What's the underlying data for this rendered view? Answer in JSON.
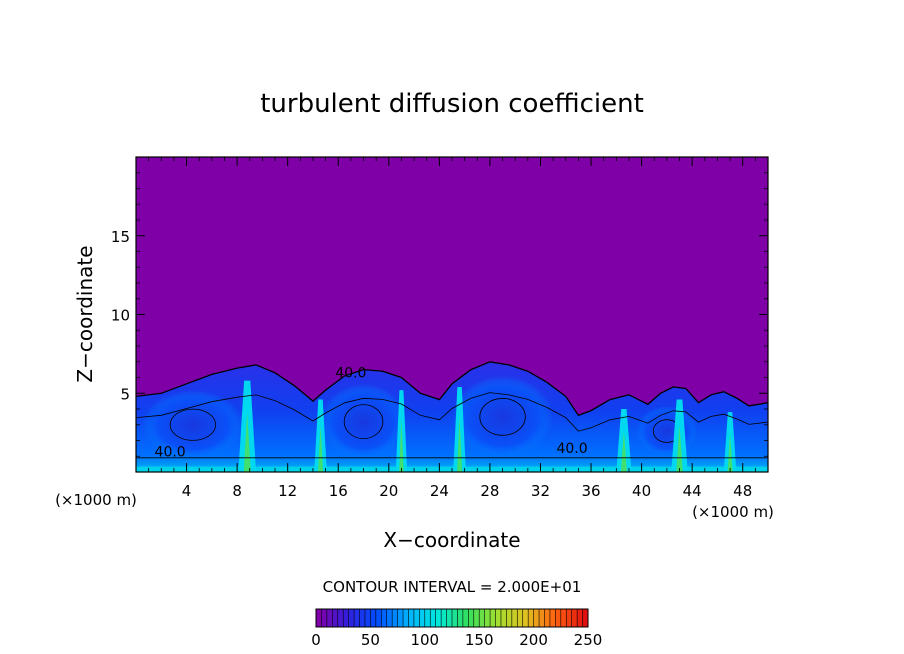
{
  "chart_data": {
    "type": "heatmap",
    "title": "turbulent diffusion coefficient",
    "xlabel": "X−coordinate",
    "ylabel": "Z−coordinate",
    "x_unit_left": "(×1000 m)",
    "x_unit_right": "(×1000 m)",
    "xlim": [
      0,
      50
    ],
    "ylim": [
      0,
      20
    ],
    "xticks": [
      4,
      8,
      12,
      16,
      20,
      24,
      28,
      32,
      36,
      40,
      44,
      48
    ],
    "yticks": [
      5,
      10,
      15
    ],
    "background_value": 0,
    "background_color": "#8000a8",
    "contour_interval_text": "CONTOUR INTERVAL = 2.000E+01",
    "contour_labels": [
      {
        "text": "40.0",
        "x": 17,
        "z": 6.0
      },
      {
        "text": "40.0",
        "x": 34.5,
        "z": 1.2
      },
      {
        "text": "40.0",
        "x": 2.7,
        "z": 1.0
      }
    ],
    "colorbar": {
      "min": 0,
      "max": 250,
      "ticks": [
        0,
        50,
        100,
        150,
        200,
        250
      ],
      "colors": [
        "#8000a8",
        "#3020e0",
        "#0050ff",
        "#00b0ff",
        "#00e8e0",
        "#30e060",
        "#a0e030",
        "#e0c020",
        "#ff6010",
        "#e01010"
      ]
    },
    "boundary_layer_top": [
      [
        0,
        4.8
      ],
      [
        2,
        5.0
      ],
      [
        4,
        5.6
      ],
      [
        6,
        6.2
      ],
      [
        8,
        6.6
      ],
      [
        9.5,
        6.8
      ],
      [
        11,
        6.3
      ],
      [
        12.5,
        5.5
      ],
      [
        14,
        4.5
      ],
      [
        15,
        5.2
      ],
      [
        16.5,
        6.1
      ],
      [
        18,
        6.5
      ],
      [
        19.5,
        6.4
      ],
      [
        21,
        6.0
      ],
      [
        22.5,
        5.0
      ],
      [
        24,
        4.6
      ],
      [
        25,
        5.6
      ],
      [
        26.5,
        6.5
      ],
      [
        28,
        7.0
      ],
      [
        29.5,
        6.8
      ],
      [
        31,
        6.4
      ],
      [
        32.5,
        5.7
      ],
      [
        34,
        4.8
      ],
      [
        35,
        3.6
      ],
      [
        36,
        3.9
      ],
      [
        37.5,
        4.6
      ],
      [
        39,
        4.9
      ],
      [
        40.5,
        4.3
      ],
      [
        41.5,
        5.0
      ],
      [
        42.5,
        5.4
      ],
      [
        43.5,
        5.3
      ],
      [
        44.5,
        4.4
      ],
      [
        45.5,
        4.9
      ],
      [
        46.5,
        5.1
      ],
      [
        47.5,
        4.7
      ],
      [
        48.5,
        4.2
      ],
      [
        50,
        4.4
      ]
    ],
    "plumes": [
      {
        "x": 8.8,
        "z_top": 5.8,
        "width": 1.4
      },
      {
        "x": 14.6,
        "z_top": 4.6,
        "width": 1.0
      },
      {
        "x": 21.0,
        "z_top": 5.2,
        "width": 0.9
      },
      {
        "x": 25.6,
        "z_top": 5.4,
        "width": 1.0
      },
      {
        "x": 38.6,
        "z_top": 4.0,
        "width": 1.2
      },
      {
        "x": 43.0,
        "z_top": 4.6,
        "width": 1.3
      },
      {
        "x": 47.0,
        "z_top": 3.8,
        "width": 1.0
      }
    ],
    "eddies": [
      {
        "x": 4.5,
        "z": 3.0,
        "rx": 4.0,
        "rz": 2.2
      },
      {
        "x": 18.0,
        "z": 3.2,
        "rx": 3.4,
        "rz": 2.4
      },
      {
        "x": 29.0,
        "z": 3.5,
        "rx": 4.0,
        "rz": 2.6
      },
      {
        "x": 42.0,
        "z": 2.6,
        "rx": 2.4,
        "rz": 1.6
      }
    ]
  }
}
